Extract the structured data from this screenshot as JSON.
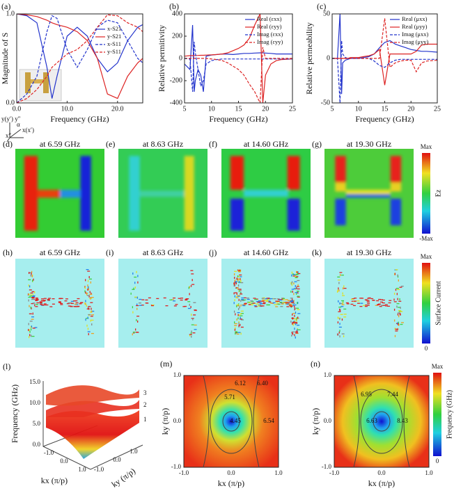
{
  "chart_data": [
    {
      "type": "line",
      "label": "(a)",
      "xlabel": "Frequency (GHz)",
      "ylabel": "Magnitude of S",
      "xlim": [
        0,
        25
      ],
      "xticks": [
        {
          "value": 0,
          "label": "0.0"
        },
        {
          "value": 10,
          "label": "10.0"
        },
        {
          "value": 20,
          "label": "20.0"
        }
      ],
      "ylim": [
        0,
        1
      ],
      "yticks": [
        {
          "value": 0,
          "label": "0.0"
        },
        {
          "value": 1,
          "label": "1.0"
        }
      ],
      "legend": "upper right",
      "x": [
        0,
        2,
        4,
        6,
        7,
        8,
        10,
        12,
        14,
        16,
        18,
        20,
        22,
        24,
        25
      ],
      "series": [
        {
          "name": "x-S21",
          "color": "#2233cc",
          "style": "solid",
          "values": [
            1.0,
            0.98,
            0.9,
            0.4,
            0.05,
            0.3,
            0.75,
            0.85,
            0.75,
            0.5,
            0.35,
            0.45,
            0.7,
            0.85,
            0.88
          ]
        },
        {
          "name": "y-S21",
          "color": "#dd2222",
          "style": "solid",
          "values": [
            1.0,
            0.99,
            0.97,
            0.93,
            0.9,
            0.88,
            0.85,
            0.8,
            0.7,
            0.5,
            0.1,
            0.05,
            0.3,
            0.45,
            0.5
          ]
        },
        {
          "name": "x-S11",
          "color": "#2233cc",
          "style": "dashed",
          "values": [
            0.0,
            0.1,
            0.3,
            0.8,
            0.98,
            0.95,
            0.6,
            0.4,
            0.6,
            0.85,
            0.93,
            0.9,
            0.7,
            0.5,
            0.45
          ]
        },
        {
          "name": "y-S11",
          "color": "#dd2222",
          "style": "dashed",
          "values": [
            0.0,
            0.05,
            0.15,
            0.3,
            0.4,
            0.45,
            0.55,
            0.6,
            0.7,
            0.85,
            0.99,
            0.98,
            0.9,
            0.85,
            0.8
          ]
        }
      ]
    },
    {
      "type": "line",
      "label": "(b)",
      "xlabel": "Frequency (GHz)",
      "ylabel": "Relative permitivity",
      "xlim": [
        5,
        25
      ],
      "xticks": [
        5,
        10,
        15,
        20,
        25
      ],
      "ylim": [
        -400,
        400
      ],
      "yticks": [
        -400,
        -200,
        0,
        200,
        400
      ],
      "legend": "upper right",
      "x": [
        5,
        6,
        6.5,
        6.8,
        7,
        7.5,
        8,
        8.5,
        9,
        10,
        11,
        12,
        13,
        14,
        15,
        16,
        17,
        18,
        19,
        19.5,
        20,
        21,
        22,
        23,
        25
      ],
      "series": [
        {
          "name": "Real (εxx)",
          "color": "#2233cc",
          "style": "solid",
          "values": [
            -50,
            -100,
            300,
            -300,
            -200,
            -100,
            -150,
            -300,
            20,
            30,
            35,
            40,
            38,
            35,
            40,
            45,
            45,
            48,
            50,
            50,
            48,
            45,
            40,
            40,
            40
          ]
        },
        {
          "name": "Real (εyy)",
          "color": "#dd2222",
          "style": "solid",
          "values": [
            20,
            25,
            25,
            26,
            26,
            27,
            28,
            28,
            30,
            32,
            35,
            40,
            50,
            70,
            90,
            120,
            180,
            300,
            400,
            -400,
            -150,
            -50,
            -20,
            -10,
            -5
          ]
        },
        {
          "name": "Imag (εxx)",
          "color": "#2233cc",
          "style": "dashed",
          "values": [
            0,
            -5,
            -300,
            150,
            50,
            -100,
            -250,
            -200,
            -50,
            -20,
            -10,
            -5,
            -5,
            -5,
            -5,
            -5,
            -5,
            -5,
            -5,
            -5,
            -5,
            -5,
            -5,
            -5,
            -5
          ]
        },
        {
          "name": "Imag (εyy)",
          "color": "#dd2222",
          "style": "dashed",
          "values": [
            0,
            0,
            0,
            0,
            0,
            0,
            0,
            0,
            0,
            -5,
            -10,
            -20,
            -40,
            -70,
            -100,
            -150,
            -230,
            -300,
            -400,
            100,
            0,
            0,
            0,
            0,
            0
          ]
        }
      ]
    },
    {
      "type": "line",
      "label": "(c)",
      "xlabel": "Frequency (GHz)",
      "ylabel": "Relative permeability",
      "xlim": [
        5,
        25
      ],
      "xticks": [
        5,
        10,
        15,
        20,
        25
      ],
      "ylim": [
        -50,
        50
      ],
      "yticks": [
        -50,
        0,
        50
      ],
      "legend": "upper right",
      "x": [
        5,
        6,
        6.5,
        6.8,
        7,
        7.5,
        8,
        8.5,
        9,
        10,
        11,
        12,
        13,
        14,
        15,
        16,
        17,
        18,
        19,
        19.5,
        20,
        21,
        22,
        23,
        25
      ],
      "series": [
        {
          "name": "Real (μxx)",
          "color": "#2233cc",
          "style": "solid",
          "values": [
            0,
            0,
            50,
            -40,
            -5,
            -2,
            -1,
            0,
            0,
            0,
            1,
            2,
            5,
            12,
            18,
            20,
            16,
            14,
            12,
            11,
            10,
            9,
            8,
            8,
            7
          ]
        },
        {
          "name": "Real (μyy)",
          "color": "#dd2222",
          "style": "solid",
          "values": [
            0,
            0,
            0,
            0,
            0,
            0,
            0,
            1,
            1,
            1,
            2,
            3,
            5,
            10,
            -30,
            5,
            5,
            5,
            5,
            5,
            5,
            8,
            15,
            16,
            16
          ]
        },
        {
          "name": "Imag (μxx)",
          "color": "#2233cc",
          "style": "dashed",
          "values": [
            0,
            0,
            -50,
            20,
            5,
            1,
            0,
            0,
            0,
            0,
            0,
            0,
            -3,
            -8,
            -10,
            -5,
            -2,
            -1,
            -1,
            -1,
            -1,
            -1,
            -1,
            -1,
            -1
          ]
        },
        {
          "name": "Imag (μyy)",
          "color": "#dd2222",
          "style": "dashed",
          "values": [
            0,
            0,
            0,
            0,
            0,
            0,
            0,
            0,
            0,
            0,
            0,
            0,
            0,
            0,
            45,
            -10,
            -5,
            -3,
            -2,
            -2,
            -2,
            -15,
            -5,
            -3,
            -2
          ]
        }
      ]
    }
  ],
  "inset_axes": {
    "labels": [
      "y(y′) y″",
      "α",
      "x(x′)",
      "x″"
    ]
  },
  "field_maps": {
    "panels": [
      {
        "label": "(d)",
        "title": "at 6.59 GHz"
      },
      {
        "label": "(e)",
        "title": "at 8.63 GHz"
      },
      {
        "label": "(f)",
        "title": "at 14.60 GHz"
      },
      {
        "label": "(g)",
        "title": "at 19.30 GHz"
      }
    ],
    "colorbar": {
      "max": "Max",
      "quantity": "Ez",
      "min": "-Max"
    }
  },
  "current_maps": {
    "panels": [
      {
        "label": "(h)",
        "title": "at 6.59 GHz"
      },
      {
        "label": "(i)",
        "title": "at 8.63 GHz"
      },
      {
        "label": "(j)",
        "title": "at 14.60 GHz"
      },
      {
        "label": "(k)",
        "title": "at 19.30 GHz"
      }
    ],
    "colorbar": {
      "max": "Max",
      "quantity": "Surface Current",
      "min": "0"
    }
  },
  "band_structure": {
    "label": "(l)",
    "zlabel": "Frequency (GHz)",
    "zticks": [
      "0.0",
      "5.0",
      "10.0",
      "15.0"
    ],
    "xlabel": "kx (π/p)",
    "ylabel": "ky (π/p)",
    "xticks": [
      "-1.0",
      "0.0",
      "1.0"
    ],
    "yticks": [
      "-1.0",
      "0.0",
      "1.0"
    ],
    "bands": [
      "1",
      "2",
      "3"
    ]
  },
  "contour_maps": [
    {
      "label": "(m)",
      "xlabel": "kx (π/p)",
      "ylabel": "ky (π/p)",
      "xticks": [
        "-1.0",
        "0.0",
        "1.0"
      ],
      "yticks": [
        "-1.0",
        "0.0",
        "1.0"
      ],
      "contour_labels": [
        "6.12",
        "6.40",
        "5.71",
        "4.45",
        "6.54"
      ]
    },
    {
      "label": "(n)",
      "xlabel": "kx (π/p)",
      "ylabel": "ky (π/p)",
      "xticks": [
        "-1.0",
        "0.0",
        "1.0"
      ],
      "yticks": [
        "-1.0",
        "0.0",
        "1.0"
      ],
      "contour_labels": [
        "6.95",
        "7.44",
        "6.63",
        "8.43"
      ]
    }
  ],
  "contour_colorbar": {
    "max": "Max",
    "quantity": "Frequency (GHz)",
    "min": "0"
  }
}
